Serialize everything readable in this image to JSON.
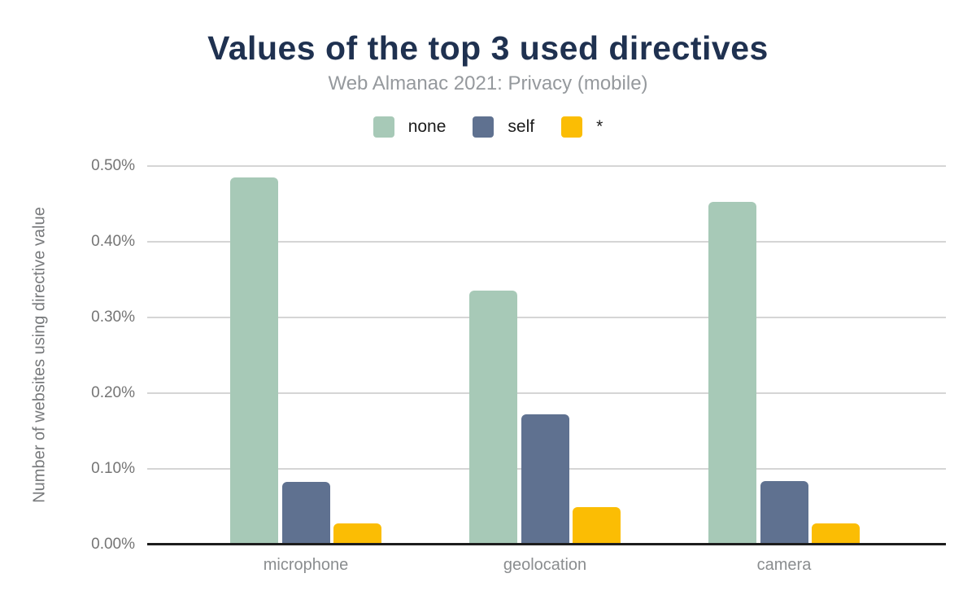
{
  "chart_data": {
    "type": "bar",
    "title": "Values of the top 3 used directives",
    "subtitle": "Web Almanac 2021: Privacy (mobile)",
    "ylabel": "Number of websites using directive value",
    "xlabel": "",
    "categories": [
      "microphone",
      "geolocation",
      "camera"
    ],
    "series": [
      {
        "name": "none",
        "color": "#A7C9B7",
        "values": [
          0.485,
          0.335,
          0.453
        ]
      },
      {
        "name": "self",
        "color": "#5F7190",
        "values": [
          0.083,
          0.172,
          0.084
        ]
      },
      {
        "name": "*",
        "color": "#FBBD04",
        "values": [
          0.028,
          0.049,
          0.028
        ]
      }
    ],
    "ylim": [
      0,
      0.5
    ],
    "ytick_step": 0.1,
    "ytick_labels": [
      "0.00%",
      "0.10%",
      "0.20%",
      "0.30%",
      "0.40%",
      "0.50%"
    ],
    "value_unit": "percent",
    "grid": true,
    "legend_position": "top"
  },
  "colors": {
    "title": "#1F3150",
    "subtitle": "#95999D",
    "axis_text": "#757575",
    "category_text": "#8A8D8F",
    "gridline": "#D5D5D5",
    "baseline": "#1D1D1D",
    "background": "#FFFFFF"
  }
}
